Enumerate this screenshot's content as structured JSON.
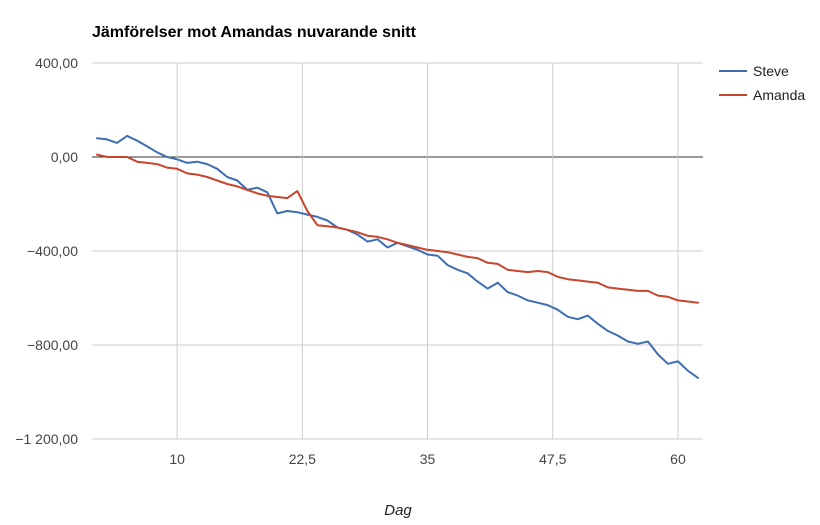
{
  "chart_data": {
    "type": "line",
    "title": "Jämförelser mot Amandas nuvarande snitt",
    "xlabel": "Dag",
    "ylabel": "",
    "xlim": [
      1.5,
      62.5
    ],
    "ylim": [
      -1200,
      400
    ],
    "x_ticks": [
      10,
      22.5,
      35,
      47.5,
      60
    ],
    "x_tick_labels": [
      "10",
      "22,5",
      "35",
      "47,5",
      "60"
    ],
    "y_ticks": [
      400,
      0,
      -400,
      -800,
      -1200
    ],
    "y_tick_labels": [
      "400,00",
      "0,00",
      "−400,00",
      "−800,00",
      "−1 200,00"
    ],
    "grid": true,
    "legend_position": "right",
    "series": [
      {
        "name": "Steve",
        "color": "#3f6db3",
        "x": [
          2,
          3,
          4,
          5,
          6,
          7,
          8,
          9,
          10,
          11,
          12,
          13,
          14,
          15,
          16,
          17,
          18,
          19,
          20,
          21,
          22,
          23,
          24,
          25,
          26,
          27,
          28,
          29,
          30,
          31,
          32,
          33,
          34,
          35,
          36,
          37,
          38,
          39,
          40,
          41,
          42,
          43,
          44,
          45,
          46,
          47,
          48,
          49,
          50,
          51,
          52,
          53,
          54,
          55,
          56,
          57,
          58,
          59,
          60,
          61,
          62
        ],
        "values": [
          80,
          75,
          60,
          90,
          70,
          45,
          20,
          0,
          -10,
          -25,
          -20,
          -30,
          -50,
          -85,
          -100,
          -140,
          -130,
          -150,
          -240,
          -230,
          -235,
          -245,
          -255,
          -270,
          -300,
          -310,
          -330,
          -360,
          -350,
          -385,
          -365,
          -380,
          -395,
          -415,
          -420,
          -460,
          -480,
          -495,
          -530,
          -560,
          -535,
          -575,
          -590,
          -610,
          -620,
          -630,
          -650,
          -680,
          -690,
          -675,
          -710,
          -740,
          -760,
          -785,
          -795,
          -785,
          -840,
          -880,
          -870,
          -910,
          -940
        ]
      },
      {
        "name": "Amanda",
        "color": "#c9452d",
        "x": [
          2,
          3,
          4,
          5,
          6,
          7,
          8,
          9,
          10,
          11,
          12,
          13,
          14,
          15,
          16,
          17,
          18,
          19,
          20,
          21,
          22,
          23,
          24,
          25,
          26,
          27,
          28,
          29,
          30,
          31,
          32,
          33,
          34,
          35,
          36,
          37,
          38,
          39,
          40,
          41,
          42,
          43,
          44,
          45,
          46,
          47,
          48,
          49,
          50,
          51,
          52,
          53,
          54,
          55,
          56,
          57,
          58,
          59,
          60,
          61,
          62
        ],
        "values": [
          10,
          0,
          0,
          0,
          -20,
          -25,
          -30,
          -45,
          -50,
          -70,
          -75,
          -85,
          -100,
          -115,
          -125,
          -140,
          -155,
          -165,
          -170,
          -175,
          -145,
          -230,
          -290,
          -295,
          -300,
          -310,
          -320,
          -335,
          -340,
          -350,
          -365,
          -375,
          -385,
          -395,
          -400,
          -405,
          -415,
          -425,
          -430,
          -450,
          -455,
          -480,
          -485,
          -490,
          -485,
          -490,
          -510,
          -520,
          -525,
          -530,
          -535,
          -555,
          -560,
          -565,
          -570,
          -570,
          -590,
          -595,
          -610,
          -615,
          -620
        ]
      }
    ]
  }
}
